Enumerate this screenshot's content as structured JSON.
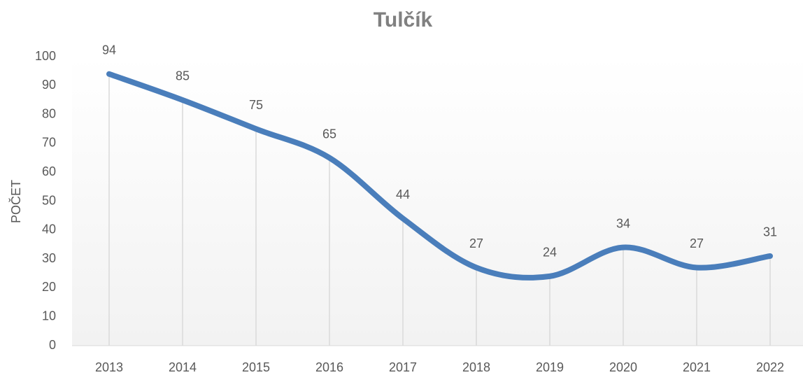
{
  "chart_data": {
    "type": "line",
    "title": "Tulčík",
    "y_label": "POČET",
    "categories": [
      "2013",
      "2014",
      "2015",
      "2016",
      "2017",
      "2018",
      "2019",
      "2020",
      "2021",
      "2022"
    ],
    "series": [
      {
        "name": "Tulčík",
        "color": "#4a7ebb",
        "values": [
          94,
          85,
          75,
          65,
          44,
          27,
          24,
          34,
          27,
          31
        ]
      }
    ],
    "ylim": [
      0,
      100
    ],
    "yticks": [
      0,
      10,
      20,
      30,
      40,
      50,
      60,
      70,
      80,
      90,
      100
    ],
    "smooth": true,
    "drop_lines": true,
    "data_labels": true
  }
}
